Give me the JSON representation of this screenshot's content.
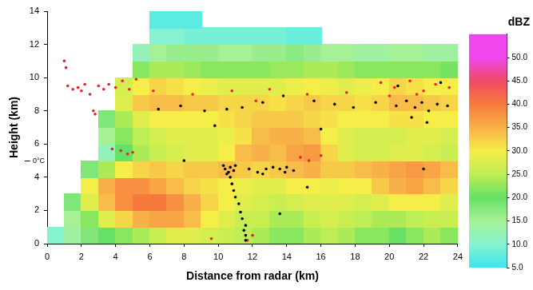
{
  "chart_data": {
    "type": "heatmap",
    "x_label": "Distance from radar (km)",
    "y_label": "Height (km)",
    "xlim": [
      0,
      24
    ],
    "ylim": [
      0,
      14
    ],
    "xticks": [
      0,
      2,
      4,
      6,
      8,
      10,
      12,
      14,
      16,
      18,
      20,
      22,
      24
    ],
    "yticks": [
      0,
      2,
      4,
      6,
      8,
      10,
      12,
      14
    ],
    "grid": false,
    "x_bins": [
      0,
      1,
      2,
      3,
      4,
      5,
      6,
      7,
      8,
      9,
      10,
      11,
      12,
      13,
      14,
      15,
      16,
      17,
      18,
      19,
      20,
      21,
      22,
      23,
      24
    ],
    "y_bins": [
      0,
      1,
      2,
      3,
      4,
      5,
      6,
      7,
      8,
      9,
      10,
      11,
      12,
      13,
      14
    ],
    "cells": [
      [
        10,
        14,
        18,
        20,
        22,
        24,
        26,
        28,
        28,
        27,
        26,
        25,
        24,
        22,
        22,
        24,
        25,
        24,
        22,
        22,
        20,
        22,
        24,
        22
      ],
      [
        null,
        15,
        22,
        28,
        32,
        35,
        36,
        36,
        34,
        30,
        28,
        26,
        26,
        24,
        24,
        26,
        27,
        26,
        25,
        24,
        24,
        25,
        26,
        26
      ],
      [
        null,
        18,
        28,
        34,
        38,
        40,
        40,
        38,
        35,
        32,
        30,
        28,
        27,
        26,
        27,
        28,
        28,
        28,
        27,
        28,
        30,
        30,
        30,
        28
      ],
      [
        null,
        null,
        30,
        35,
        38,
        38,
        36,
        34,
        32,
        31,
        30,
        29,
        28,
        28,
        30,
        30,
        29,
        30,
        30,
        33,
        35,
        36,
        34,
        32
      ],
      [
        null,
        null,
        18,
        24,
        30,
        32,
        33,
        32,
        33,
        33,
        34,
        33,
        32,
        33,
        34,
        35,
        33,
        33,
        34,
        35,
        36,
        37,
        36,
        34
      ],
      [
        null,
        null,
        null,
        12,
        20,
        24,
        26,
        27,
        28,
        28,
        30,
        34,
        35,
        34,
        36,
        37,
        32,
        28,
        27,
        27,
        28,
        28,
        27,
        26
      ],
      [
        null,
        null,
        null,
        15,
        22,
        25,
        27,
        28,
        28,
        28,
        29,
        31,
        34,
        35,
        35,
        34,
        30,
        28,
        27,
        27,
        27,
        28,
        28,
        27
      ],
      [
        null,
        null,
        null,
        18,
        24,
        28,
        30,
        30,
        30,
        30,
        31,
        32,
        33,
        33,
        33,
        32,
        31,
        30,
        30,
        30,
        31,
        31,
        30,
        30
      ],
      [
        null,
        null,
        null,
        null,
        28,
        33,
        34,
        34,
        33,
        33,
        32,
        32,
        32,
        31,
        32,
        33,
        32,
        32,
        31,
        32,
        34,
        34,
        33,
        32
      ],
      [
        null,
        null,
        null,
        null,
        27,
        30,
        32,
        31,
        30,
        29,
        28,
        28,
        28,
        28,
        29,
        30,
        29,
        28,
        29,
        30,
        32,
        31,
        30,
        30
      ],
      [
        null,
        null,
        null,
        null,
        null,
        22,
        24,
        24,
        23,
        22,
        22,
        22,
        22,
        23,
        23,
        24,
        24,
        23,
        22,
        22,
        22,
        22,
        22,
        21
      ],
      [
        null,
        null,
        null,
        null,
        null,
        12,
        15,
        16,
        16,
        16,
        15,
        15,
        16,
        16,
        17,
        16,
        15,
        15,
        14,
        14,
        15,
        15,
        14,
        14
      ],
      [
        null,
        null,
        null,
        null,
        null,
        null,
        10,
        10,
        9,
        9,
        9,
        9,
        9,
        9,
        8,
        8,
        null,
        null,
        null,
        null,
        null,
        null,
        null,
        null
      ],
      [
        null,
        null,
        null,
        null,
        null,
        null,
        7,
        7,
        7,
        null,
        null,
        null,
        null,
        null,
        null,
        null,
        null,
        null,
        null,
        null,
        null,
        null,
        null,
        null
      ]
    ],
    "colorbar": {
      "label": "dBZ",
      "range": [
        5,
        55
      ],
      "ticks": [
        {
          "value": 5,
          "label": "5.0"
        },
        {
          "value": 10,
          "label": "10.0"
        },
        {
          "value": 15,
          "label": "15.0"
        },
        {
          "value": 20,
          "label": "20.0"
        },
        {
          "value": 25,
          "label": "25.0"
        },
        {
          "value": 30,
          "label": "30.0"
        },
        {
          "value": 35,
          "label": "35.0"
        },
        {
          "value": 40,
          "label": "40.0"
        },
        {
          "value": 45,
          "label": "45.0"
        },
        {
          "value": 50,
          "label": "50.0"
        }
      ],
      "colors": [
        "#3ee6f0",
        "#86f2d0",
        "#a6f096",
        "#66e066",
        "#bdee55",
        "#f6ee48",
        "#f8b048",
        "#f77a3c",
        "#f04a64",
        "#f046ee"
      ]
    },
    "series": [
      {
        "type": "scatter",
        "color": "#000000",
        "marker": "circle",
        "x": [
          11.6,
          11.6,
          11.5,
          11.6,
          11.4,
          11.3,
          11.2,
          11.0,
          10.9,
          10.8,
          10.7,
          10.6,
          10.4,
          10.7,
          10.5,
          10.9,
          10.3,
          11.0,
          12.3,
          12.8,
          13.2,
          13.6,
          14.0,
          14.4,
          13.9,
          12.6,
          11.8,
          6.5,
          7.8,
          9.2,
          10.5,
          11.4,
          12.6,
          13.8,
          15.6,
          16.8,
          17.9,
          19.2,
          20.4,
          21.0,
          21.5,
          21.9,
          22.3,
          22.8,
          23.4,
          21.3,
          22.2,
          8.0,
          9.8,
          15.2,
          22.0,
          13.6,
          16.0,
          20.5,
          23.0
        ],
        "y": [
          0.2,
          0.5,
          0.8,
          1.1,
          1.5,
          1.9,
          2.4,
          2.8,
          3.2,
          3.6,
          4.0,
          4.3,
          4.5,
          4.6,
          4.2,
          4.4,
          4.7,
          4.7,
          4.3,
          4.5,
          4.6,
          4.5,
          4.6,
          4.4,
          4.3,
          4.2,
          4.5,
          8.1,
          8.3,
          8.0,
          8.1,
          8.2,
          8.5,
          8.9,
          8.6,
          8.4,
          8.2,
          8.5,
          8.3,
          8.6,
          8.2,
          8.5,
          8.0,
          8.4,
          8.3,
          7.6,
          7.3,
          5.0,
          7.1,
          3.4,
          4.5,
          1.8,
          6.9,
          9.5,
          9.7
        ]
      },
      {
        "type": "scatter",
        "color": "#e8202a",
        "marker": "circle",
        "x": [
          1.0,
          1.1,
          1.2,
          1.5,
          1.8,
          2.0,
          2.2,
          2.5,
          2.7,
          2.8,
          3.0,
          3.3,
          3.6,
          4.0,
          4.4,
          4.8,
          5.2,
          3.8,
          4.3,
          4.7,
          5.0,
          19.5,
          20.3,
          21.2,
          22.0,
          22.7,
          23.5,
          21.6,
          20.0,
          6.2,
          8.5,
          10.8,
          13.0,
          15.2,
          17.5,
          12.2,
          14.8,
          15.3,
          16.0,
          9.6,
          12.0,
          11.7
        ],
        "y": [
          11.0,
          10.6,
          9.5,
          9.3,
          9.4,
          9.2,
          9.6,
          9.0,
          8.0,
          7.8,
          9.5,
          9.3,
          9.6,
          9.4,
          9.8,
          9.3,
          9.9,
          5.7,
          5.6,
          5.4,
          5.5,
          9.7,
          9.4,
          9.8,
          9.2,
          9.6,
          9.4,
          9.0,
          8.9,
          9.2,
          9.0,
          9.2,
          9.3,
          9.0,
          9.1,
          8.6,
          5.2,
          5.0,
          5.3,
          0.3,
          0.5,
          0.2
        ]
      }
    ],
    "annotations": [
      {
        "text": "0°C",
        "x": 0,
        "y": 5.0
      }
    ]
  }
}
